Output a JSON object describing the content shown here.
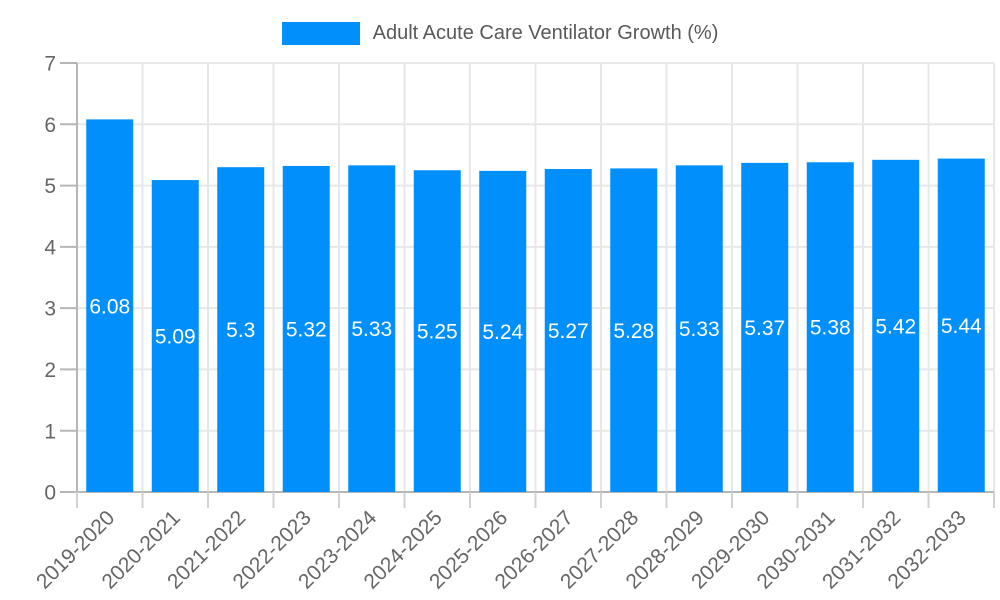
{
  "chart_data": {
    "type": "bar",
    "title": "Adult Acute Care Ventilator Growth (%)",
    "categories": [
      "2019-2020",
      "2020-2021",
      "2021-2022",
      "2022-2023",
      "2023-2024",
      "2024-2025",
      "2025-2026",
      "2026-2027",
      "2027-2028",
      "2028-2029",
      "2029-2030",
      "2030-2031",
      "2031-2032",
      "2032-2033"
    ],
    "values": [
      6.08,
      5.09,
      5.3,
      5.32,
      5.33,
      5.25,
      5.24,
      5.27,
      5.28,
      5.33,
      5.37,
      5.38,
      5.42,
      5.44
    ],
    "labels": [
      "6.08",
      "5.09",
      "5.3",
      "5.32",
      "5.33",
      "5.25",
      "5.24",
      "5.27",
      "5.28",
      "5.33",
      "5.37",
      "5.38",
      "5.42",
      "5.44"
    ],
    "ylabel": "",
    "xlabel": "",
    "ylim": [
      0,
      7
    ],
    "yticks": [
      "0",
      "1",
      "2",
      "3",
      "4",
      "5",
      "6",
      "7"
    ],
    "grid": true,
    "legend_position": "top",
    "colors": {
      "bar": "#008FFB",
      "data_label": "#ffffff",
      "axis_label": "#666666",
      "legend_text": "#58595b",
      "grid_line": "#e7e7e7",
      "axis_line": "#b6b6b6",
      "x_tick_line": "#d2d2d2",
      "background": "#ffffff"
    }
  }
}
